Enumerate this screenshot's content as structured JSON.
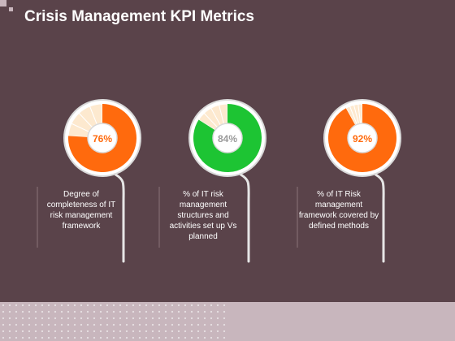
{
  "title": "Crisis Management KPI Metrics",
  "colors": {
    "background": "#5a434a",
    "orange": "#ff6a0d",
    "green": "#1dc433",
    "pale": "#fde9cf",
    "ring": "#d9d9d9",
    "footer": "#c8b6bd"
  },
  "chart_data": [
    {
      "type": "pie",
      "value": 76,
      "label": "76%",
      "color": "#ff6a0d",
      "description": "Degree of completeness of IT risk management framework"
    },
    {
      "type": "pie",
      "value": 84,
      "label": "84%",
      "color": "#1dc433",
      "description": "% of IT risk management structures and activities set up Vs planned"
    },
    {
      "type": "pie",
      "value": 92,
      "label": "92%",
      "color": "#ff6a0d",
      "description": "% of IT Risk management framework covered by defined methods"
    }
  ]
}
